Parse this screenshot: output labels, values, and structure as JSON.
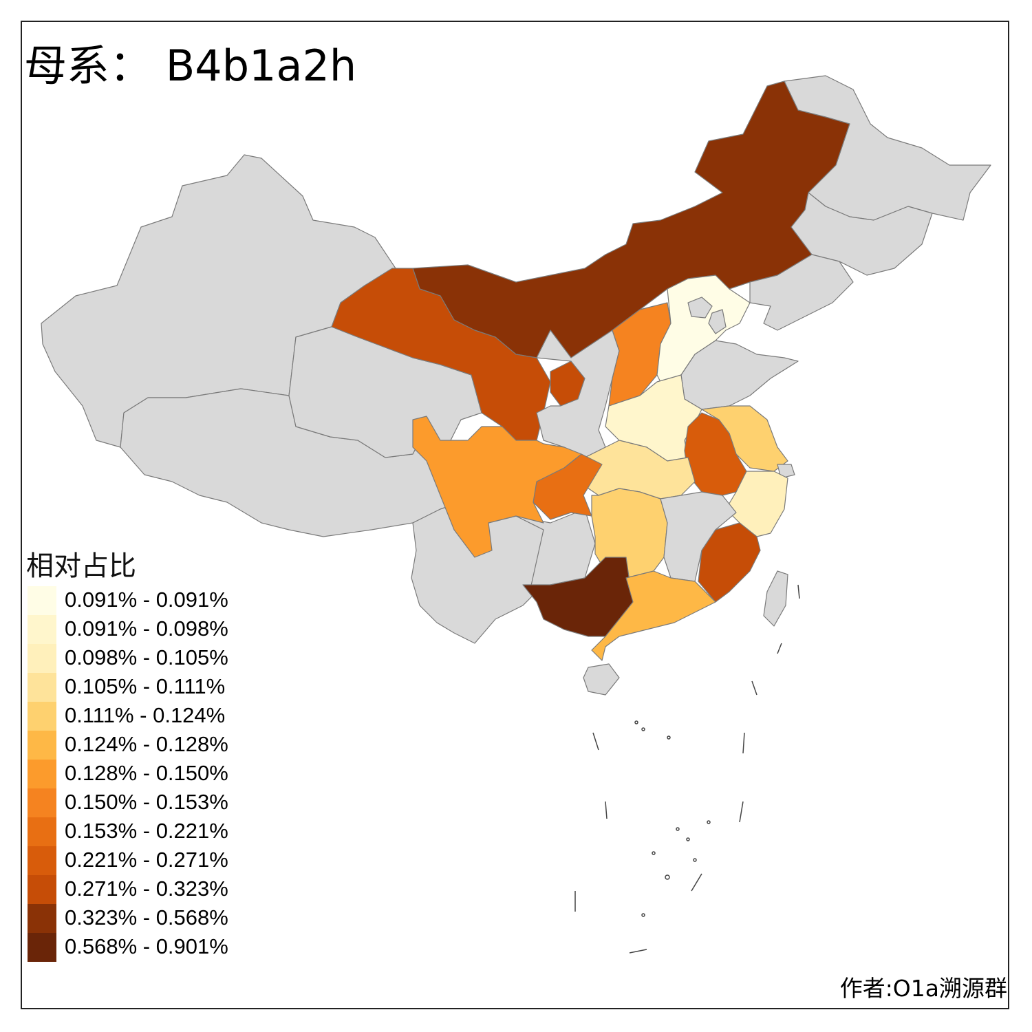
{
  "title": "母系： B4b1a2h",
  "legend": {
    "title": "相对占比",
    "items": [
      {
        "label": "0.091% - 0.091%",
        "color": "#fffde6"
      },
      {
        "label": "0.091% - 0.098%",
        "color": "#fff6cc"
      },
      {
        "label": "0.098% - 0.105%",
        "color": "#fff0bb"
      },
      {
        "label": "0.105% - 0.111%",
        "color": "#fee39a"
      },
      {
        "label": "0.111% - 0.124%",
        "color": "#fed16f"
      },
      {
        "label": "0.124% - 0.128%",
        "color": "#feb846"
      },
      {
        "label": "0.128% - 0.150%",
        "color": "#fc9b2c"
      },
      {
        "label": "0.150% - 0.153%",
        "color": "#f58320"
      },
      {
        "label": "0.153% - 0.221%",
        "color": "#e86f13"
      },
      {
        "label": "0.221% - 0.271%",
        "color": "#d85c0b"
      },
      {
        "label": "0.271% - 0.323%",
        "color": "#c64d07"
      },
      {
        "label": "0.323% - 0.568%",
        "color": "#8a3206"
      },
      {
        "label": "0.568% - 0.901%",
        "color": "#6a2508"
      }
    ]
  },
  "author": "作者:O1a溯源群",
  "nodata_color": "#d9d9d9"
}
